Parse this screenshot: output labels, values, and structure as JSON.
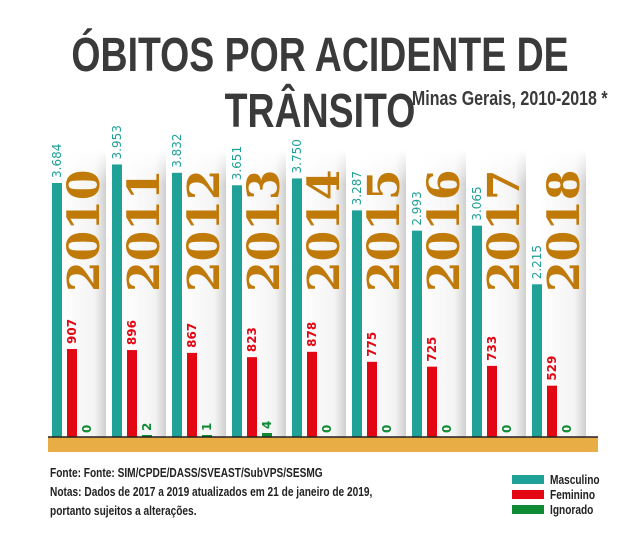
{
  "header": {
    "title": "ÓBITOS POR ACIDENTE DE TRÂNSITO",
    "subtitle": "Minas Gerais, 2010-2018 *"
  },
  "footer": {
    "source": "Fonte: Fonte: SIM/CPDE/DASS/SVEAST/SubVPS/SESMG",
    "note_line1": "Notas: Dados de 2017 a 2019 atualizados em 21 de janeiro de 2019,",
    "note_line2": "portanto sujeitos a alterações."
  },
  "legend": [
    {
      "label": "Masculino",
      "color": "#1fa197"
    },
    {
      "label": "Feminino",
      "color": "#e30613"
    },
    {
      "label": "Ignorado",
      "color": "#0f8a35"
    }
  ],
  "colors": {
    "masculino": "#1fa197",
    "feminino": "#e30613",
    "ignorado": "#0f8a35",
    "year": "#c07a0a",
    "base": "#e8ad45"
  },
  "chart_data": {
    "type": "bar",
    "title": "ÓBITOS POR ACIDENTE DE TRÂNSITO",
    "subtitle": "Minas Gerais, 2010-2018 *",
    "xlabel": "",
    "ylabel": "",
    "categories": [
      "2010",
      "2011",
      "2012",
      "2013",
      "2014",
      "2015",
      "2016",
      "2017",
      "2018"
    ],
    "series": [
      {
        "name": "Masculino",
        "values": [
          3684,
          3953,
          3832,
          3651,
          3750,
          3287,
          2993,
          3065,
          2215
        ],
        "labels": [
          "3.684",
          "3.953",
          "3.832",
          "3.651",
          "3.750",
          "3.287",
          "2.993",
          "3.065",
          "2.215"
        ]
      },
      {
        "name": "Feminino",
        "values": [
          907,
          896,
          867,
          823,
          878,
          775,
          725,
          733,
          529
        ],
        "labels": [
          "907",
          "896",
          "867",
          "823",
          "878",
          "775",
          "725",
          "733",
          "529"
        ]
      },
      {
        "name": "Ignorado",
        "values": [
          0,
          2,
          1,
          4,
          0,
          0,
          0,
          0,
          0
        ],
        "labels": [
          "0",
          "2",
          "1",
          "4",
          "0",
          "0",
          "0",
          "0",
          "0"
        ]
      }
    ],
    "legend_position": "bottom-right",
    "grid": false
  }
}
